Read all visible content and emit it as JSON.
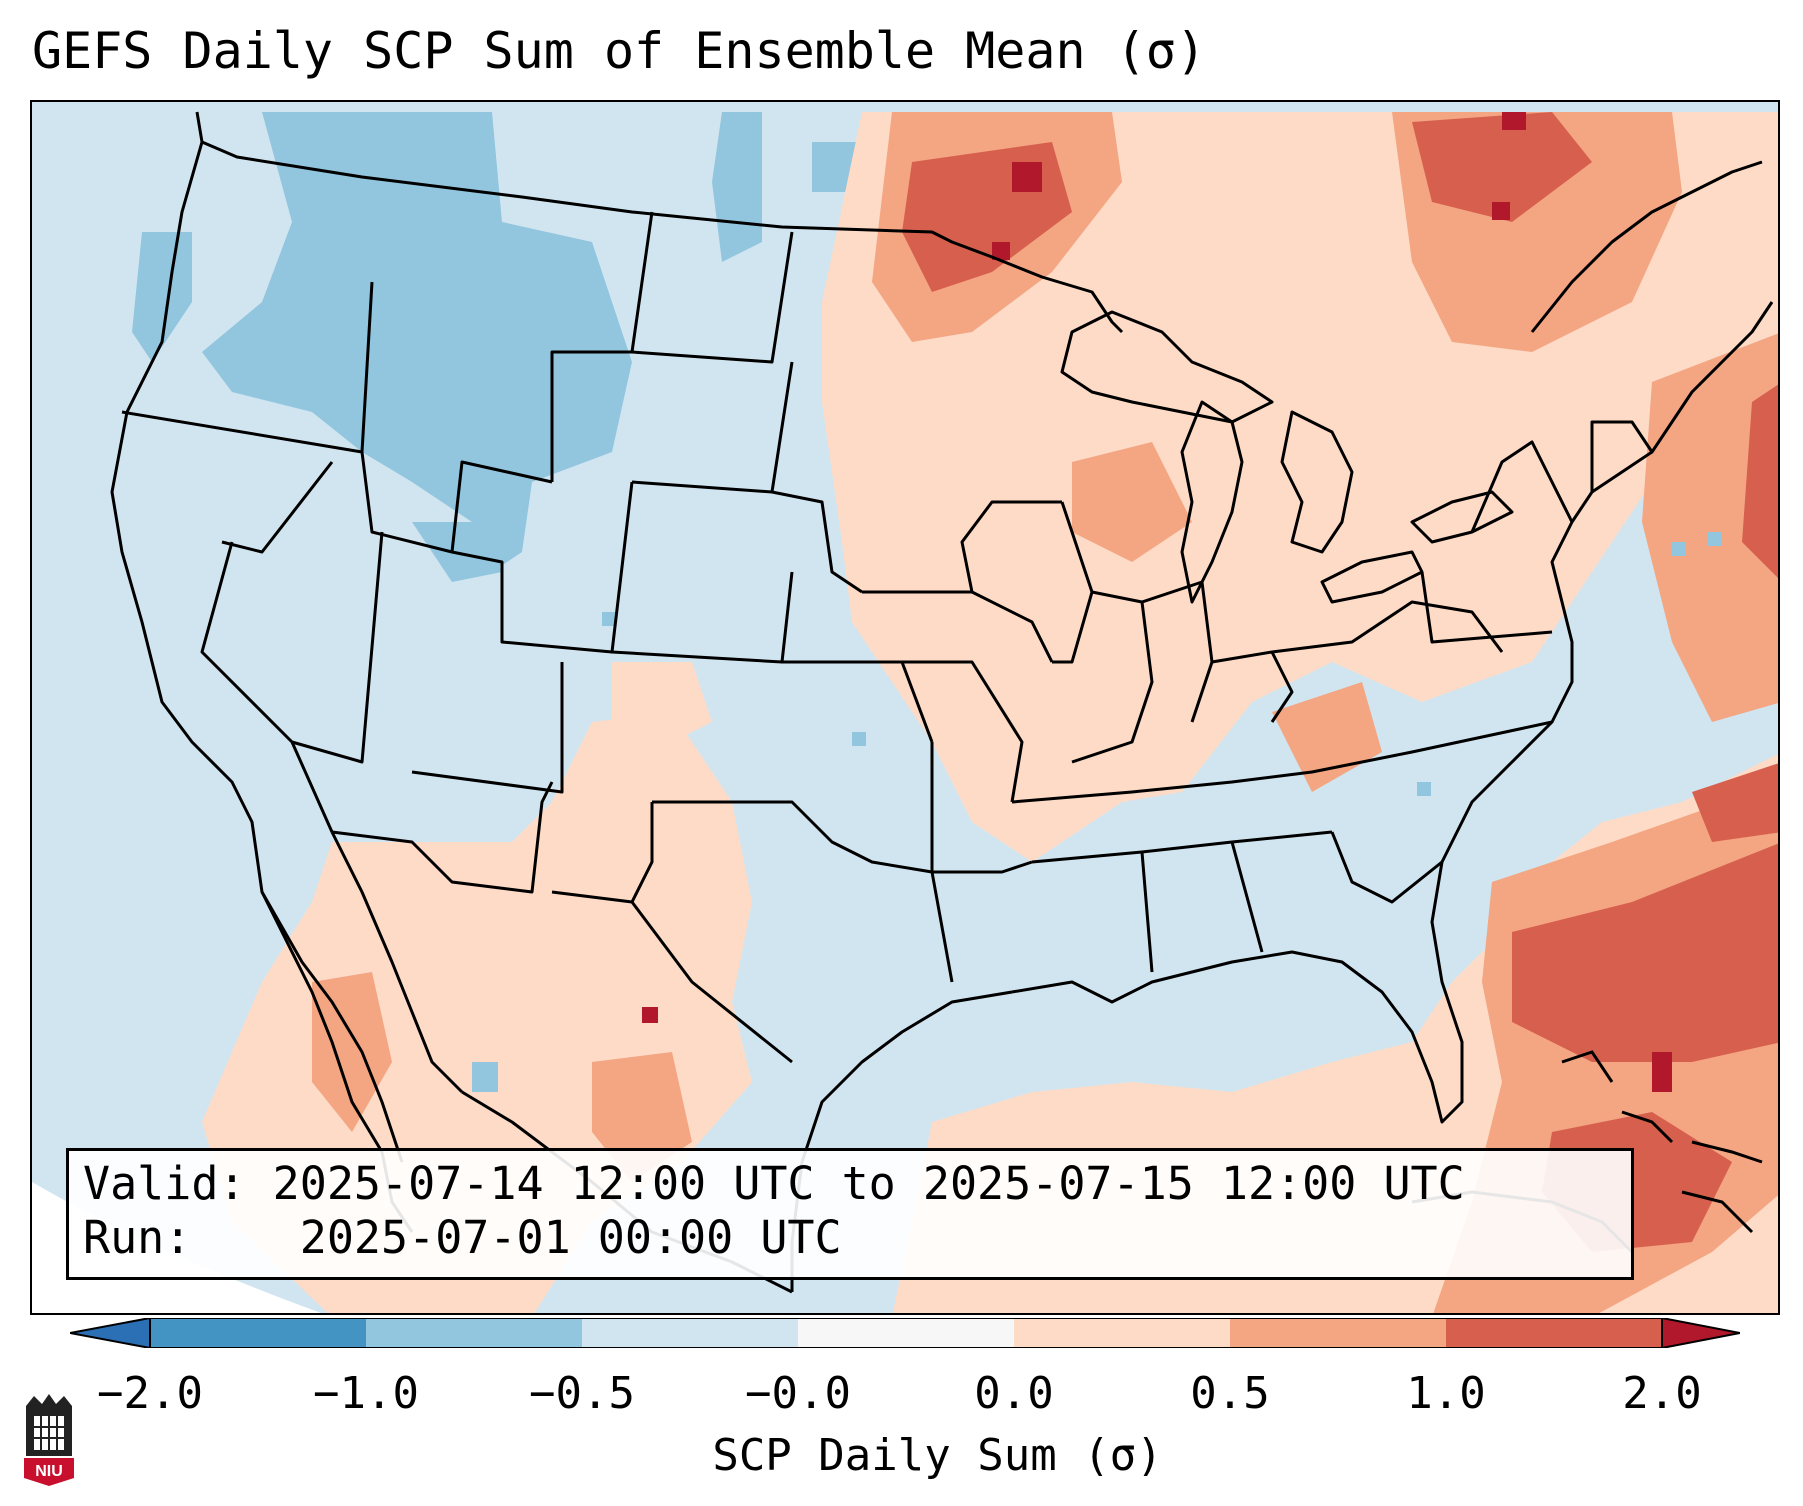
{
  "title": "GEFS Daily SCP Sum of Ensemble Mean (σ)",
  "info": {
    "valid_label": "Valid:",
    "valid_value": "2025-07-14 12:00 UTC to 2025-07-15 12:00 UTC",
    "run_label": "Run:",
    "run_value": "2025-07-01 00:00 UTC"
  },
  "colorbar": {
    "label": "SCP Daily Sum (σ)",
    "ticks": [
      "−2.0",
      "−1.0",
      "−0.5",
      "−0.0",
      "0.0",
      "0.5",
      "1.0",
      "2.0"
    ],
    "colors": {
      "extend_low": "#2b6fb5",
      "bin_neg_2_to_neg_1": "#4393c3",
      "bin_neg_1_to_neg_05": "#92c5de",
      "bin_neg_05_to_0": "#d1e5f0",
      "bin_0": "#f7f7f7",
      "bin_0_to_05": "#fddbc7",
      "bin_05_to_1": "#f4a582",
      "bin_1_to_2": "#d6604d",
      "extend_high": "#b2182b"
    }
  },
  "logo": {
    "text": "NIU"
  }
}
